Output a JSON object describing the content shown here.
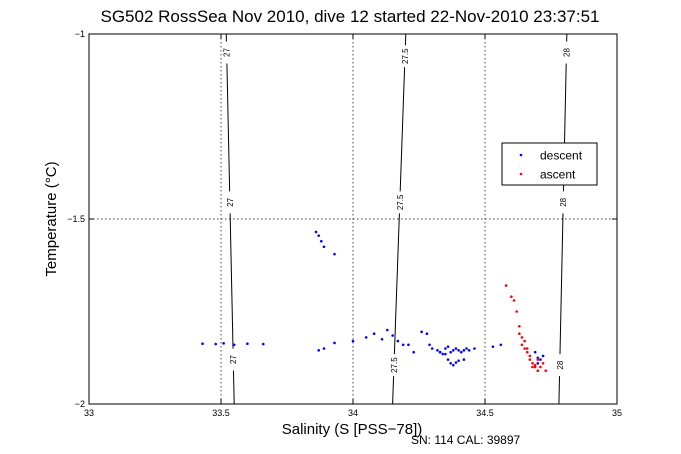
{
  "chart_data": {
    "type": "scatter",
    "title": "SG502 RossSea Nov 2010, dive 12 started 22-Nov-2010 23:37:51",
    "xlabel": "Salinity (S [PSS−78])",
    "ylabel": "Temperature (°C)",
    "xlim": [
      33,
      35
    ],
    "ylim": [
      -2,
      -1
    ],
    "xticks": [
      33,
      33.5,
      34,
      34.5,
      35
    ],
    "xtick_labels": [
      "33",
      "33.5",
      "34",
      "34.5",
      "35"
    ],
    "yticks": [
      -2,
      -1.5,
      -1
    ],
    "ytick_labels": [
      "−2",
      "−1.5",
      "−1"
    ],
    "grid": true,
    "grid_style": "dotted",
    "legend_position": "right",
    "colors": {
      "descent": "#0000ff",
      "ascent": "#ff0000",
      "contour": "#000000"
    },
    "series": [
      {
        "name": "descent",
        "color": "#0000ff",
        "x": [
          33.43,
          33.48,
          33.51,
          33.55,
          33.6,
          33.66,
          33.86,
          33.87,
          33.88,
          33.89,
          33.93,
          33.87,
          33.89,
          33.93,
          34.0,
          34.05,
          34.08,
          34.11,
          34.13,
          34.15,
          34.17,
          34.19,
          34.21,
          34.23,
          34.26,
          34.28,
          34.29,
          34.3,
          34.32,
          34.33,
          34.34,
          34.35,
          34.36,
          34.37,
          34.38,
          34.39,
          34.4,
          34.41,
          34.42,
          34.43,
          34.44,
          34.36,
          34.37,
          34.38,
          34.39,
          34.4,
          34.42,
          34.33,
          34.35,
          34.46,
          34.53,
          34.56,
          34.69,
          34.7,
          34.7,
          34.71,
          34.72
        ],
        "y": [
          -1.837,
          -1.838,
          -1.836,
          -1.84,
          -1.837,
          -1.838,
          -1.535,
          -1.545,
          -1.56,
          -1.575,
          -1.595,
          -1.855,
          -1.85,
          -1.835,
          -1.83,
          -1.82,
          -1.81,
          -1.825,
          -1.8,
          -1.815,
          -1.83,
          -1.84,
          -1.84,
          -1.86,
          -1.805,
          -1.81,
          -1.84,
          -1.85,
          -1.855,
          -1.86,
          -1.865,
          -1.85,
          -1.845,
          -1.86,
          -1.855,
          -1.85,
          -1.855,
          -1.86,
          -1.855,
          -1.85,
          -1.855,
          -1.88,
          -1.89,
          -1.895,
          -1.888,
          -1.883,
          -1.88,
          -1.86,
          -1.865,
          -1.85,
          -1.845,
          -1.84,
          -1.86,
          -1.875,
          -1.89,
          -1.88,
          -1.87
        ]
      },
      {
        "name": "ascent",
        "color": "#ff0000",
        "x": [
          34.58,
          34.6,
          34.61,
          34.62,
          34.63,
          34.63,
          34.64,
          34.64,
          34.65,
          34.65,
          34.66,
          34.66,
          34.67,
          34.67,
          34.68,
          34.68,
          34.69,
          34.69,
          34.7,
          34.7,
          34.71,
          34.72,
          34.73
        ],
        "y": [
          -1.68,
          -1.71,
          -1.72,
          -1.75,
          -1.79,
          -1.81,
          -1.82,
          -1.84,
          -1.83,
          -1.85,
          -1.85,
          -1.86,
          -1.87,
          -1.88,
          -1.89,
          -1.9,
          -1.9,
          -1.895,
          -1.91,
          -1.88,
          -1.9,
          -1.89,
          -1.91
        ]
      }
    ],
    "contours": [
      {
        "label": "27",
        "top_x": 33.52,
        "bottom_x": 33.55,
        "label_ys": [
          -1.05,
          -1.455,
          -1.88
        ]
      },
      {
        "label": "27.5",
        "top_x": 34.2,
        "bottom_x": 34.15,
        "label_ys": [
          -1.06,
          -1.455,
          -1.895
        ]
      },
      {
        "label": "28",
        "top_x": 34.81,
        "bottom_x": 34.78,
        "label_ys": [
          -1.05,
          -1.455,
          -1.895
        ]
      }
    ],
    "footer": "SN: 114  CAL: 39897"
  }
}
